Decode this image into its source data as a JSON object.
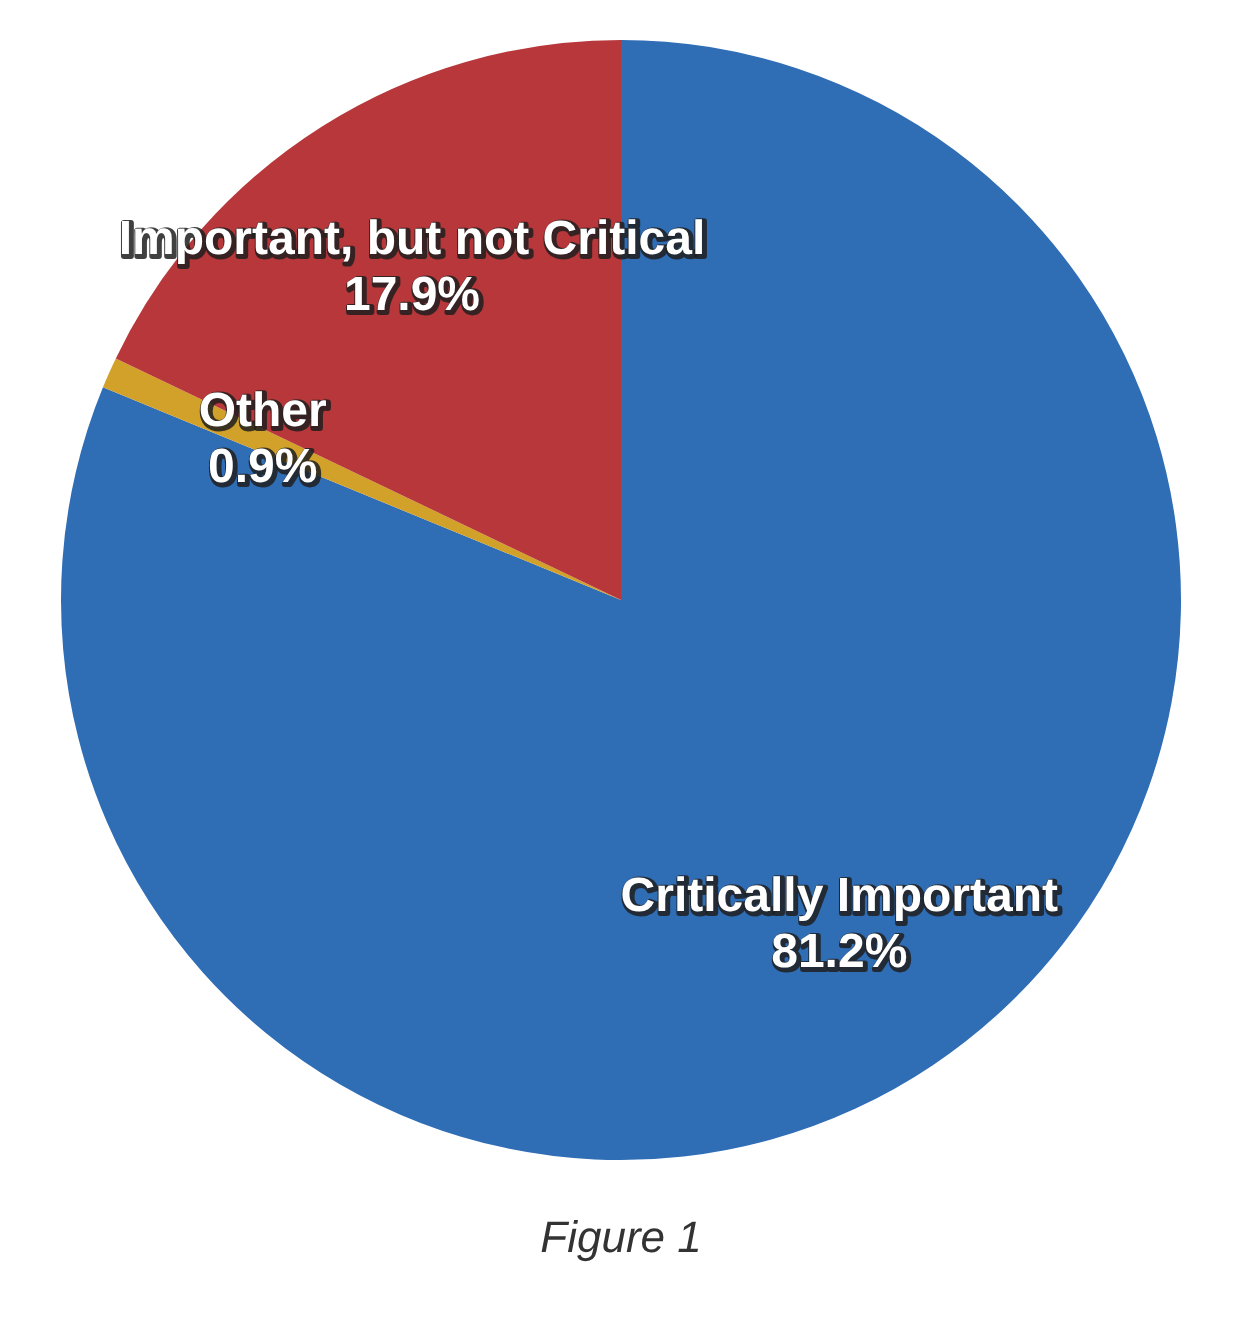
{
  "chart_data": {
    "type": "pie",
    "categories": [
      "Critically Important",
      "Other",
      "Important, but not Critical"
    ],
    "values": [
      81.2,
      0.9,
      17.9
    ],
    "colors": [
      "#2f6db5",
      "#d2a12a",
      "#b8373a"
    ],
    "value_labels": [
      "81.2%",
      "0.9%",
      "17.9%"
    ],
    "legend": false,
    "annotations": [
      "Figure 1"
    ]
  }
}
